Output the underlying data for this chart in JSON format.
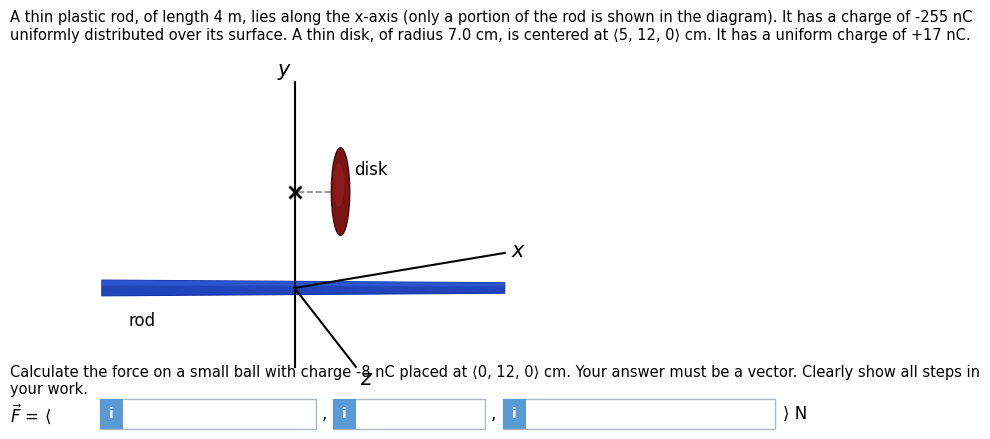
{
  "title_line1": "A thin plastic rod, of length 4 m, lies along the x-axis (only a portion of the rod is shown in the diagram). It has a charge of -255 nC",
  "title_line2": "uniformly distributed over its surface. A thin disk, of radius 7.0 cm, is centered at ⟨5, 12, 0⟩ cm. It has a uniform charge of +17 nC.",
  "body_line1": "Calculate the force on a small ball with charge -8 nC placed at ⟨0, 12, 0⟩ cm. Your answer must be a vector. Clearly show all steps in",
  "body_line2": "your work.",
  "background_color": "#ffffff",
  "rod_color": "#2244bb",
  "rod_edge_color": "#1133aa",
  "disk_color": "#7a1515",
  "disk_highlight_color": "#a02020",
  "axis_color": "#000000",
  "dashed_color": "#888888",
  "x_label": "x",
  "y_label": "y",
  "z_label": "z",
  "rod_label": "rod",
  "disk_label": "disk",
  "input_box_color": "#5b9bd5",
  "input_box_border": "#b0b8c0",
  "text_fontsize": 10.5,
  "label_fontsize": 13,
  "axis_label_fontsize": 15
}
